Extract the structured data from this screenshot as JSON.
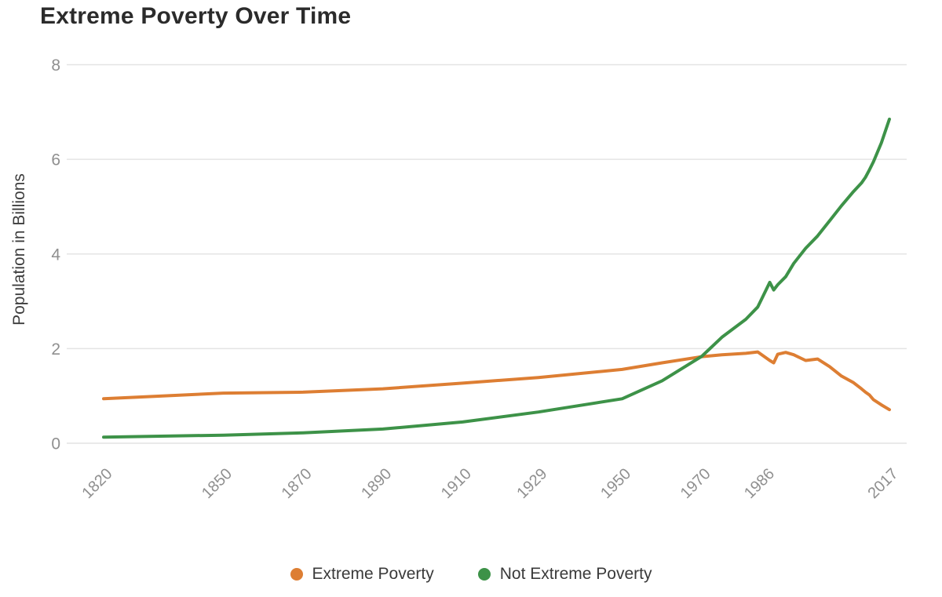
{
  "chart_data": {
    "type": "line",
    "title": "Extreme Poverty Over Time",
    "xlabel": "",
    "ylabel": "Population in Billions",
    "xlim": [
      1820,
      2017
    ],
    "ylim": [
      0,
      8
    ],
    "y_ticks": [
      0,
      2,
      4,
      6,
      8
    ],
    "x_tick_years": [
      1820,
      1850,
      1870,
      1890,
      1910,
      1929,
      1950,
      1970,
      1986,
      2017
    ],
    "grid": "horizontal",
    "legend_position": "bottom-center",
    "x": [
      1820,
      1850,
      1870,
      1890,
      1910,
      1929,
      1950,
      1960,
      1970,
      1975,
      1981,
      1984,
      1987,
      1988,
      1989,
      1991,
      1993,
      1996,
      1999,
      2002,
      2005,
      2008,
      2010,
      2011,
      2012,
      2013,
      2015,
      2017
    ],
    "series": [
      {
        "name": "Extreme Poverty",
        "color": "#dd7e33",
        "values": [
          0.94,
          1.06,
          1.08,
          1.15,
          1.27,
          1.39,
          1.56,
          1.7,
          1.83,
          1.87,
          1.9,
          1.93,
          1.75,
          1.7,
          1.88,
          1.92,
          1.87,
          1.75,
          1.78,
          1.62,
          1.42,
          1.28,
          1.15,
          1.08,
          1.02,
          0.92,
          0.81,
          0.71
        ]
      },
      {
        "name": "Not Extreme Poverty",
        "color": "#3d9248",
        "values": [
          0.13,
          0.17,
          0.22,
          0.3,
          0.45,
          0.66,
          0.94,
          1.32,
          1.84,
          2.24,
          2.62,
          2.88,
          3.4,
          3.24,
          3.35,
          3.52,
          3.8,
          4.12,
          4.38,
          4.7,
          5.02,
          5.32,
          5.5,
          5.62,
          5.78,
          5.95,
          6.35,
          6.85
        ]
      }
    ],
    "colors": {
      "grid": "#e4e4e4",
      "tick_label": "#8f8f8f",
      "axis_title": "#3c3c3c",
      "title_text": "#2b2b2b"
    }
  }
}
